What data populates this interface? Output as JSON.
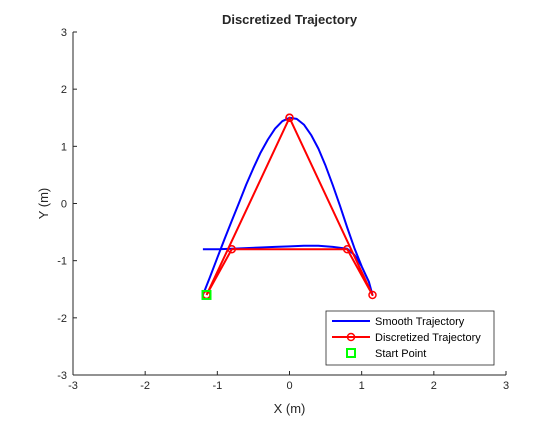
{
  "chart_data": {
    "type": "line",
    "title": "Discretized Trajectory",
    "xlabel": "X (m)",
    "ylabel": "Y (m)",
    "xlim": [
      -3,
      3
    ],
    "ylim": [
      -3,
      3
    ],
    "xticks": [
      -3,
      -2,
      -1,
      0,
      1,
      2,
      3
    ],
    "yticks": [
      -3,
      -2,
      -1,
      0,
      1,
      2,
      3
    ],
    "grid": false,
    "legend_position": "bottom-right",
    "series": [
      {
        "name": "Smooth Trajectory",
        "color": "#0000ff",
        "marker": "none",
        "x": [
          -1.2,
          -1.1,
          -1.0,
          -0.9,
          -0.8,
          -0.7,
          -0.6,
          -0.5,
          -0.4,
          -0.3,
          -0.2,
          -0.1,
          0.0,
          0.1,
          0.2,
          0.3,
          0.4,
          0.5,
          0.6,
          0.7,
          0.8,
          0.9,
          1.0,
          1.05,
          1.1,
          1.15,
          1.1,
          1.0,
          0.9,
          0.8,
          0.6,
          0.4,
          0.2,
          0.0,
          -0.2,
          -0.4,
          -0.6,
          -0.8,
          -1.0,
          -1.2
        ],
        "y": [
          -1.6,
          -1.28,
          -0.95,
          -0.62,
          -0.3,
          0.01,
          0.33,
          0.62,
          0.89,
          1.12,
          1.31,
          1.44,
          1.5,
          1.48,
          1.38,
          1.2,
          0.96,
          0.66,
          0.32,
          -0.04,
          -0.42,
          -0.78,
          -1.1,
          -1.24,
          -1.37,
          -1.6,
          -1.37,
          -1.1,
          -0.9,
          -0.79,
          -0.76,
          -0.74,
          -0.74,
          -0.75,
          -0.76,
          -0.77,
          -0.78,
          -0.79,
          -0.8,
          -0.8
        ]
      },
      {
        "name": "Discretized Trajectory",
        "color": "#ff0000",
        "marker": "circle",
        "x": [
          -1.15,
          -0.8,
          0.0,
          0.8,
          1.15,
          -1.15,
          0.0
        ],
        "y": [
          -1.6,
          -0.8,
          1.5,
          -0.8,
          -1.6,
          -1.6,
          1.5
        ],
        "plot_x": [
          -1.15,
          0.0,
          1.15,
          0.8,
          -0.8,
          -1.15
        ],
        "plot_y": [
          -1.6,
          1.5,
          -1.6,
          -0.8,
          -0.8,
          -1.6
        ]
      },
      {
        "name": "Start Point",
        "color": "#00ff00",
        "marker": "square",
        "x": [
          -1.15
        ],
        "y": [
          -1.6
        ]
      }
    ]
  }
}
